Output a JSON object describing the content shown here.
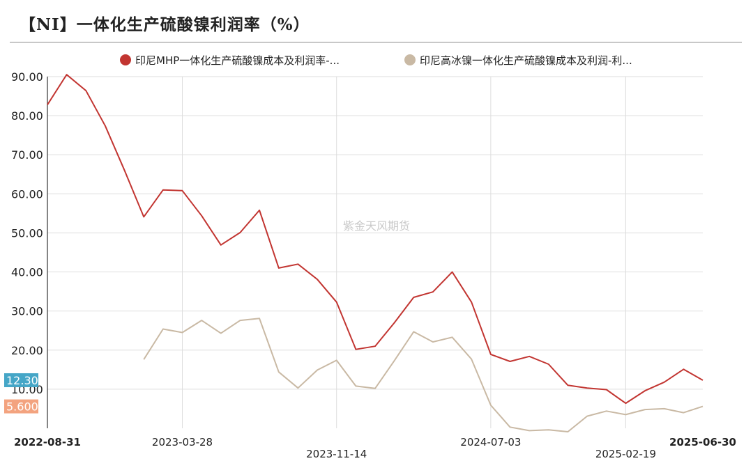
{
  "title": "【NI】一体化生产硫酸镍利润率（%）",
  "watermark": "紫金天风期货",
  "colors": {
    "series1": "#c23531",
    "series2": "#c9b9a4",
    "badge1": "#45a6c7",
    "badge2": "#f3a37f",
    "grid": "#dddddd"
  },
  "chart_data": {
    "type": "line",
    "title": "【NI】一体化生产硫酸镍利润率（%）",
    "ylim": [
      0,
      90
    ],
    "yticks": [
      "10.00",
      "20.00",
      "30.00",
      "40.00",
      "50.00",
      "60.00",
      "70.00",
      "80.00",
      "90.00"
    ],
    "grid": true,
    "legend_position": "top",
    "x": [
      "2022-08-31",
      "2022-09-30",
      "2022-10-31",
      "2022-11-30",
      "2022-12-31",
      "2023-01-31",
      "2023-02-28",
      "2023-03-28",
      "2023-04-30",
      "2023-05-31",
      "2023-06-30",
      "2023-07-31",
      "2023-08-31",
      "2023-09-30",
      "2023-10-31",
      "2023-11-14",
      "2023-12-31",
      "2024-01-31",
      "2024-02-29",
      "2024-03-31",
      "2024-04-30",
      "2024-05-31",
      "2024-06-30",
      "2024-07-03",
      "2024-08-31",
      "2024-09-30",
      "2024-10-31",
      "2024-11-30",
      "2024-12-31",
      "2025-01-31",
      "2025-02-19",
      "2025-03-31",
      "2025-04-30",
      "2025-05-31",
      "2025-06-30"
    ],
    "xticks": [
      {
        "label": "2022-08-31",
        "bold": true
      },
      {
        "label": "2023-03-28",
        "bold": false
      },
      {
        "label": "2023-11-14",
        "bold": false
      },
      {
        "label": "2024-07-03",
        "bold": false
      },
      {
        "label": "2025-02-19",
        "bold": false
      },
      {
        "label": "2025-06-30",
        "bold": true
      }
    ],
    "series": [
      {
        "name": "印尼MHP一体化生产硫酸镍成本及利润率-...",
        "values": [
          82.8,
          90.5,
          86.4,
          77.4,
          66.0,
          54.1,
          61.0,
          60.8,
          54.4,
          46.9,
          50.1,
          55.8,
          41.0,
          42.0,
          38.1,
          32.3,
          20.2,
          21.0,
          27.0,
          33.5,
          34.9,
          40.0,
          32.3,
          18.9,
          17.1,
          18.4,
          16.4,
          11.0,
          10.3,
          9.9,
          6.4,
          9.6,
          11.8,
          15.1,
          12.3
        ]
      },
      {
        "name": "印尼高冰镍一体化生产硫酸镍成本及利润-利...",
        "values": [
          null,
          null,
          null,
          null,
          null,
          17.6,
          25.4,
          24.5,
          27.6,
          24.3,
          27.6,
          28.1,
          14.4,
          10.3,
          14.9,
          17.4,
          10.8,
          10.2,
          17.3,
          24.7,
          22.1,
          23.3,
          17.7,
          5.9,
          0.3,
          -0.6,
          -0.4,
          -0.9,
          3.1,
          4.4,
          3.5,
          4.8,
          5.0,
          4.0,
          5.6
        ]
      }
    ],
    "last_value_labels": [
      "12.30",
      "5.600"
    ]
  }
}
